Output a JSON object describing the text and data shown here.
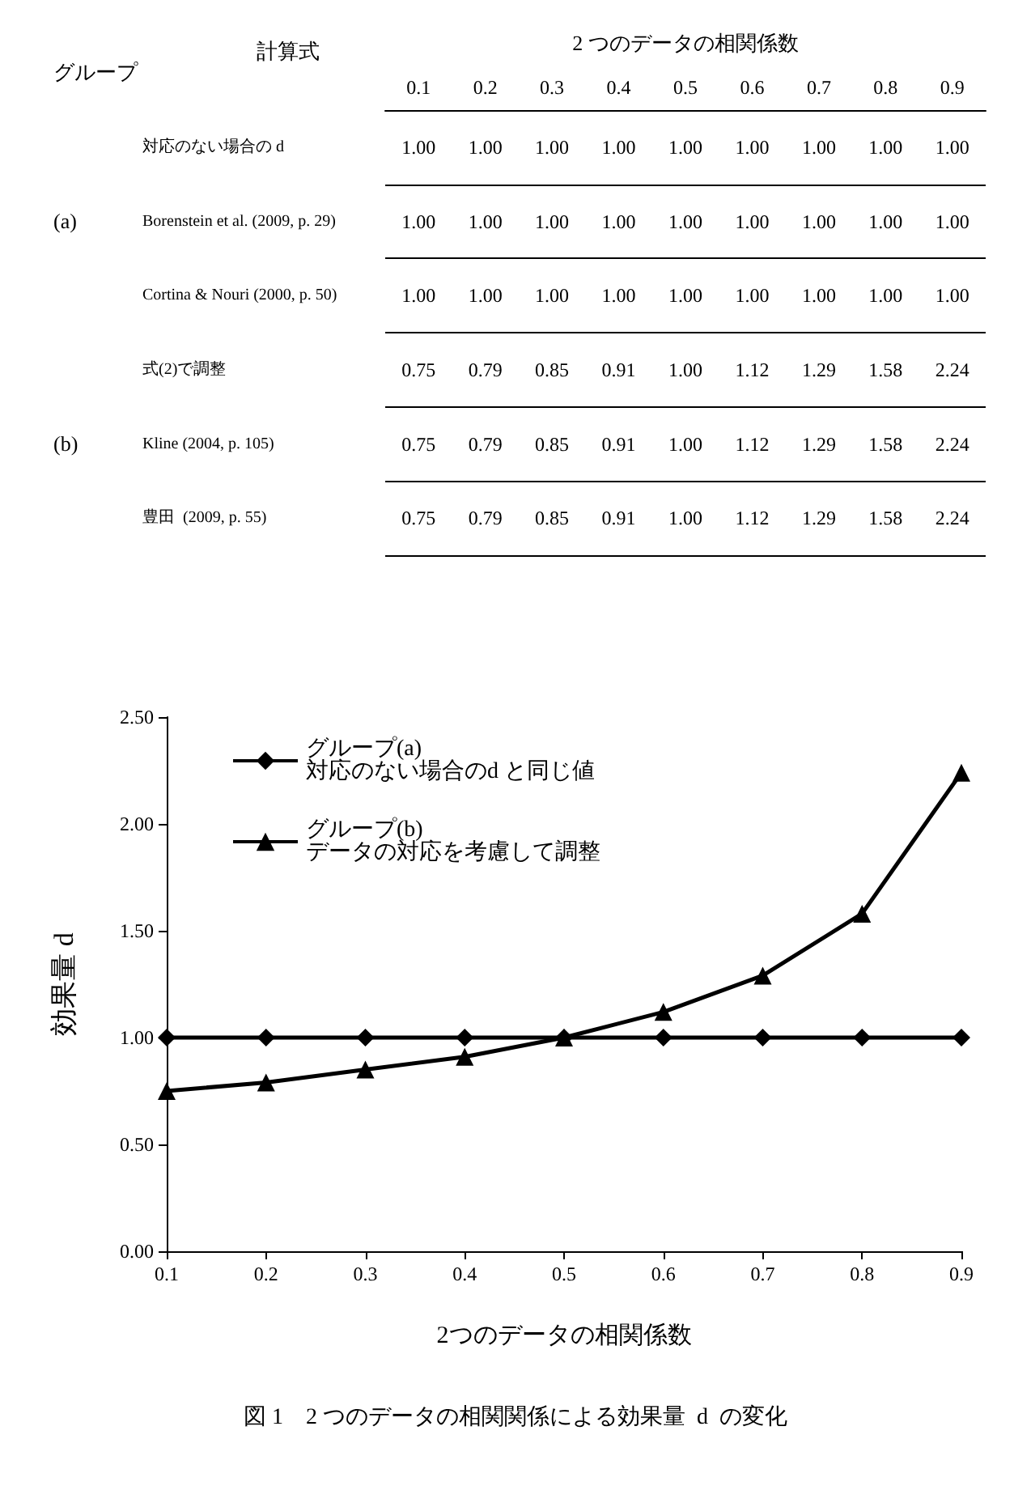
{
  "chart_data": [
    {
      "type": "heatmap",
      "xlabel": "2 つのデータの相関係数",
      "ylabel": "計算式",
      "annotations": [
        "グループ",
        "(a)",
        "(b)"
      ],
      "categories": [
        "0.1",
        "0.2",
        "0.3",
        "0.4",
        "0.5",
        "0.6",
        "0.7",
        "0.8",
        "0.9"
      ],
      "y_categories": [
        "対応のない場合の d",
        "Borenstein et al. (2009, p. 29)",
        "Cortina & Nouri (2000, p. 50)",
        "式(2)で調整",
        "Kline (2004, p. 105)",
        "豊田  (2009, p. 55)"
      ],
      "cells": [
        [
          1,
          1,
          1,
          1,
          1,
          1,
          1,
          1,
          1
        ],
        [
          1,
          1,
          1,
          1,
          1,
          1,
          1,
          1,
          1
        ],
        [
          1,
          1,
          1,
          1,
          1,
          1,
          1,
          1,
          1
        ],
        [
          0.75,
          0.79,
          0.85,
          0.91,
          1,
          1.12,
          1.29,
          1.58,
          2.24
        ],
        [
          0.75,
          0.79,
          0.85,
          0.91,
          1,
          1.12,
          1.29,
          1.58,
          2.24
        ],
        [
          0.75,
          0.79,
          0.85,
          0.91,
          1,
          1.12,
          1.29,
          1.58,
          2.24
        ]
      ],
      "cell_labels": [
        [
          "1.00",
          "1.00",
          "1.00",
          "1.00",
          "1.00",
          "1.00",
          "1.00",
          "1.00",
          "1.00"
        ],
        [
          "1.00",
          "1.00",
          "1.00",
          "1.00",
          "1.00",
          "1.00",
          "1.00",
          "1.00",
          "1.00"
        ],
        [
          "1.00",
          "1.00",
          "1.00",
          "1.00",
          "1.00",
          "1.00",
          "1.00",
          "1.00",
          "1.00"
        ],
        [
          "0.75",
          "0.79",
          "0.85",
          "0.91",
          "1.00",
          "1.12",
          "1.29",
          "1.58",
          "2.24"
        ],
        [
          "0.75",
          "0.79",
          "0.85",
          "0.91",
          "1.00",
          "1.12",
          "1.29",
          "1.58",
          "2.24"
        ],
        [
          "0.75",
          "0.79",
          "0.85",
          "0.91",
          "1.00",
          "1.12",
          "1.29",
          "1.58",
          "2.24"
        ]
      ]
    },
    {
      "type": "line",
      "xlabel": "2つのデータの相関係数",
      "ylabel": "効果量 d",
      "annotations": [
        "図 1　2 つのデータの相関関係による効果量  d  の変化"
      ],
      "x": [
        0.1,
        0.2,
        0.3,
        0.4,
        0.5,
        0.6,
        0.7,
        0.8,
        0.9
      ],
      "xlim": [
        0.1,
        0.9
      ],
      "xticks": [
        0.1,
        0.2,
        0.3,
        0.4,
        0.5,
        0.6,
        0.7,
        0.8,
        0.9
      ],
      "ylim": [
        0,
        2.5
      ],
      "yticks": [
        {
          "value": 0,
          "label": "0.00"
        },
        {
          "value": 0.5,
          "label": "0.50"
        },
        {
          "value": 1,
          "label": "1.00"
        },
        {
          "value": 1.5,
          "label": "1.50"
        },
        {
          "value": 2,
          "label": "2.00"
        },
        {
          "value": 2.5,
          "label": "2.50"
        }
      ],
      "grid": false,
      "legend": "top left",
      "series": [
        {
          "name": "グループ(a)\n対応のない場合のd と同じ値",
          "color": "#000000",
          "marker": "diamond",
          "values": [
            1,
            1,
            1,
            1,
            1,
            1,
            1,
            1,
            1
          ]
        },
        {
          "name": "グループ(b)\nデータの対応を考慮して調整",
          "color": "#000000",
          "marker": "triangle",
          "values": [
            0.75,
            0.79,
            0.85,
            0.91,
            1,
            1.12,
            1.29,
            1.58,
            2.24
          ]
        }
      ]
    }
  ]
}
